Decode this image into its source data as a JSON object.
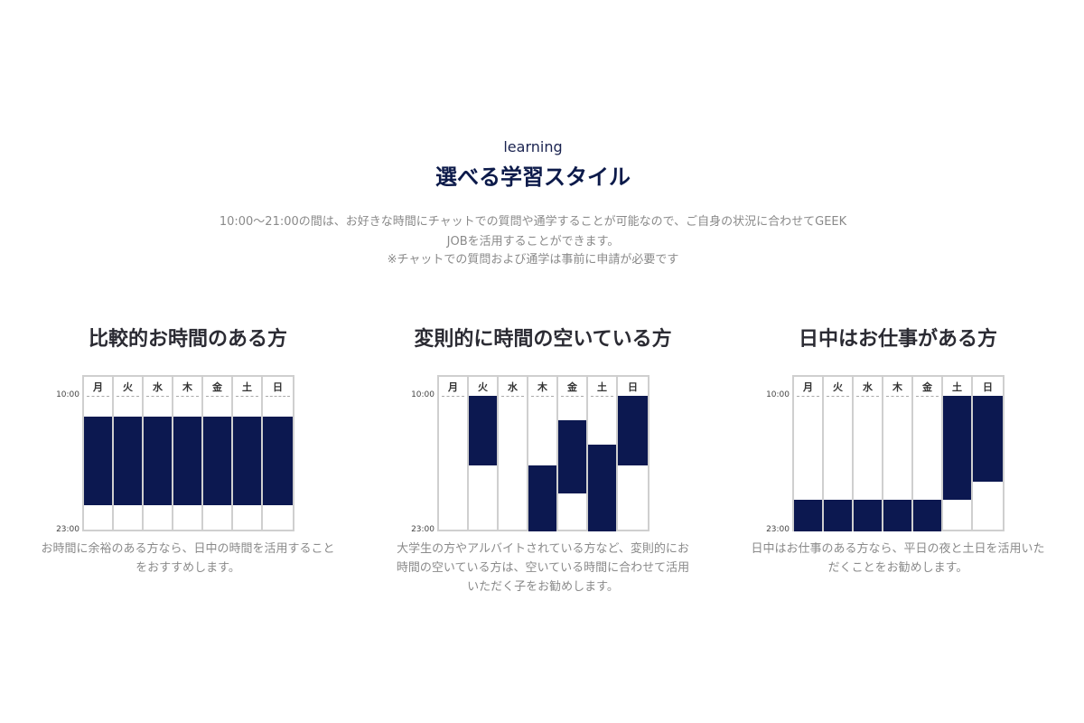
{
  "header": {
    "eyebrow": "learning",
    "title": "選べる学習スタイル",
    "lead_lines": [
      "10:00〜21:00の間は、お好きな時間にチャットでの質問や通学することが可能なので、ご自身の状況に合わせてGEEK",
      "JOBを活用することができます。",
      "※チャットでの質問および通学は事前に申請が必要です"
    ]
  },
  "days": [
    "月",
    "火",
    "水",
    "木",
    "金",
    "土",
    "日"
  ],
  "ticks": {
    "start": "10:00",
    "end": "23:00"
  },
  "bar_color": "#0c1850",
  "chart_data": [
    {
      "type": "table",
      "title": "比較的お時間のある方",
      "y_range_hours": [
        10,
        23
      ],
      "blocks": [
        [
          12,
          20.5
        ],
        [
          12,
          20.5
        ],
        [
          12,
          20.5
        ],
        [
          12,
          20.5
        ],
        [
          12,
          20.5
        ],
        [
          12,
          20.5
        ],
        [
          12,
          20.5
        ]
      ],
      "desc_lines": [
        "お時間に余裕のある方なら、日中の時間を活用すること",
        "をおすすめします。"
      ]
    },
    {
      "type": "table",
      "title": "変則的に時間の空いている方",
      "y_range_hours": [
        10,
        23
      ],
      "blocks": [
        null,
        [
          10,
          16.7
        ],
        null,
        [
          16.7,
          23
        ],
        [
          12.3,
          19.4
        ],
        [
          14.7,
          23
        ],
        [
          10,
          16.7
        ]
      ],
      "desc_lines": [
        "大学生の方やアルバイトされている方など、変則的にお",
        "時間の空いている方は、空いている時間に合わせて活用",
        "いただく子をお勧めします。"
      ]
    },
    {
      "type": "table",
      "title": "日中はお仕事がある方",
      "y_range_hours": [
        10,
        23
      ],
      "blocks": [
        [
          20,
          23
        ],
        [
          20,
          23
        ],
        [
          20,
          23
        ],
        [
          20,
          23
        ],
        [
          20,
          23
        ],
        [
          10,
          20
        ],
        [
          10,
          18.2
        ]
      ],
      "desc_lines": [
        "日中はお仕事のある方なら、平日の夜と土日を活用いた",
        "だくことをお勧めします。"
      ]
    }
  ]
}
